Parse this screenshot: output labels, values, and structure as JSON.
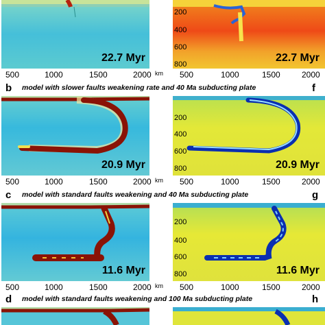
{
  "figure": {
    "rows": [
      {
        "id": "a",
        "letter_left": "",
        "letter_right": "",
        "time_left": "22.7 Myr",
        "time_right": "22.7 Myr",
        "title": ""
      },
      {
        "id": "b",
        "letter_left": "b",
        "letter_right": "f",
        "time_left": "20.9 Myr",
        "time_right": "20.9 Myr",
        "title": "model with slower faults weakening rate and 40 Ma subducting plate"
      },
      {
        "id": "c",
        "letter_left": "c",
        "letter_right": "g",
        "time_left": "11.6 Myr",
        "time_right": "11.6 Myr",
        "title": "model with standard faults weakening and 40 Ma subducting plate"
      },
      {
        "id": "d",
        "letter_left": "d",
        "letter_right": "h",
        "time_left": "",
        "time_right": "",
        "title": "model with standard faults weakening and 100 Ma subducting plate"
      }
    ],
    "x_ticks": [
      "500",
      "1000",
      "1500",
      "2000"
    ],
    "x_unit": "km",
    "y_ticks": [
      "200",
      "400",
      "600",
      "800"
    ],
    "colors": {
      "background_left": "#4fc7d6",
      "background_right": "#d9e640",
      "slab_left": "#8a1306",
      "slab_right": "#0a2fb0"
    }
  }
}
